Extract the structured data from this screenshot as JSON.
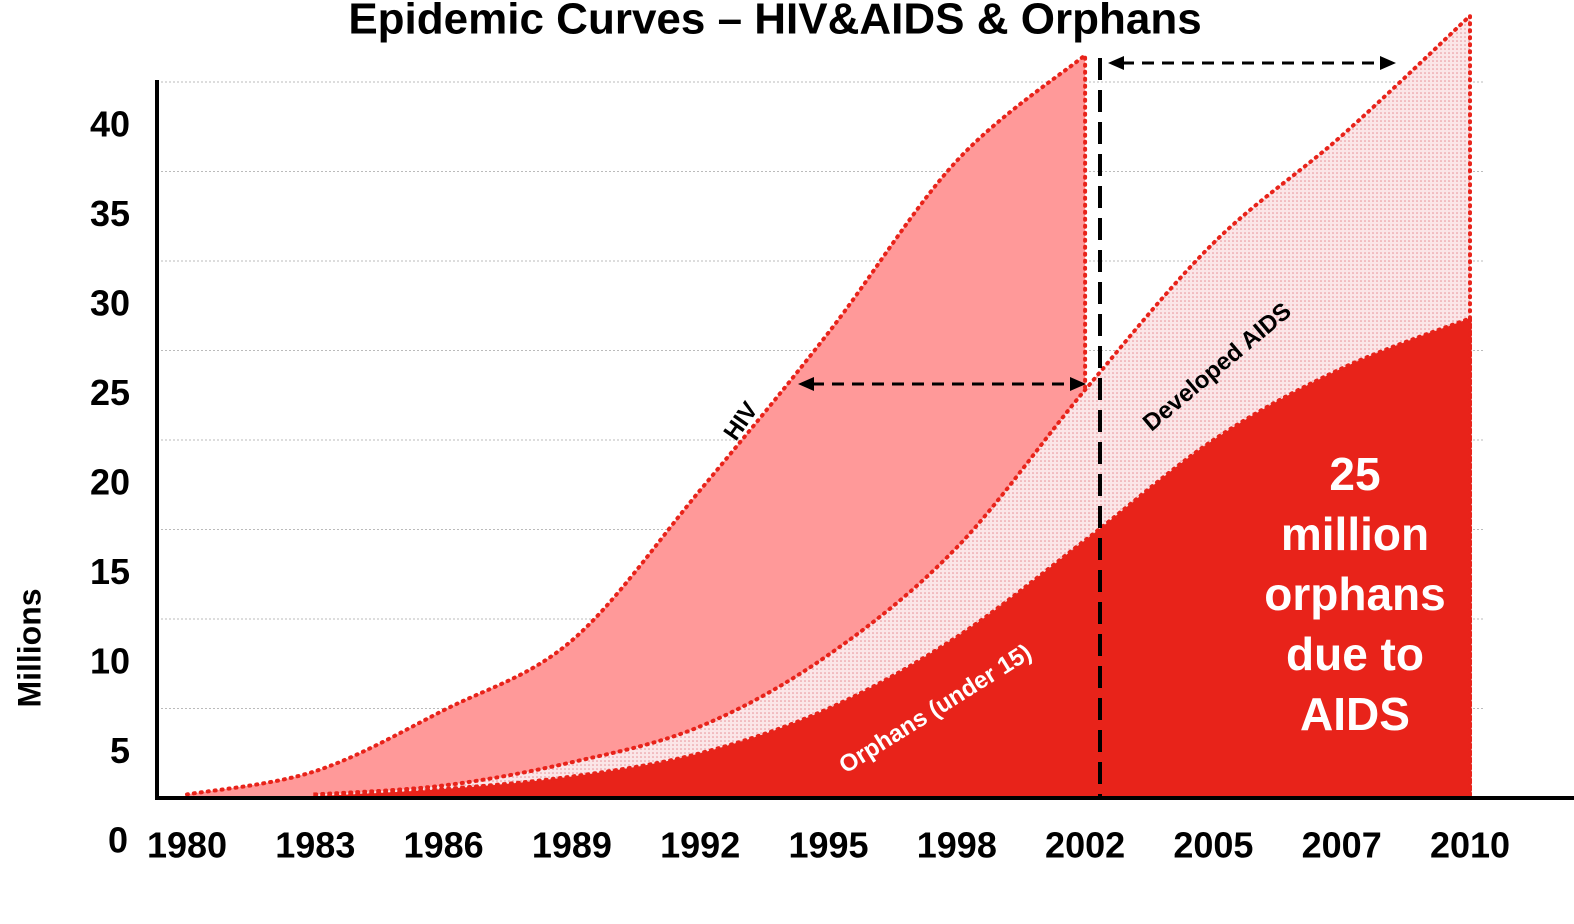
{
  "chart_data": {
    "type": "area",
    "title": "Epidemic Curves – HIV&AIDS & Orphans",
    "y_label": "Millions",
    "categories": [
      "1980",
      "1983",
      "1986",
      "1989",
      "1992",
      "1995",
      "1998",
      "2002",
      "2005",
      "2007",
      "2010"
    ],
    "series": [
      {
        "name": "HIV",
        "color": "#ff9999",
        "values": [
          0.2,
          1.5,
          4.9,
          8.8,
          17.2,
          26,
          35.6,
          41.5,
          null,
          null,
          null
        ]
      },
      {
        "name": "Developed AIDS",
        "color": "#f5d3d6",
        "values": [
          null,
          0.2,
          0.7,
          2,
          4,
          8,
          14,
          22.8,
          31,
          37,
          43.7
        ]
      },
      {
        "name": "Orphans (under 15)",
        "color": "#e8231a",
        "values": [
          null,
          0.1,
          0.5,
          1.2,
          2.5,
          5,
          9,
          14.4,
          20,
          24,
          26.8
        ]
      }
    ],
    "annotation": [
      "25",
      "million",
      "orphans",
      "due to",
      "AIDS"
    ],
    "ylim": [
      0,
      44.5
    ],
    "yticks": [
      0,
      5,
      10,
      15,
      20,
      25,
      30,
      35,
      40
    ],
    "grid": true
  }
}
